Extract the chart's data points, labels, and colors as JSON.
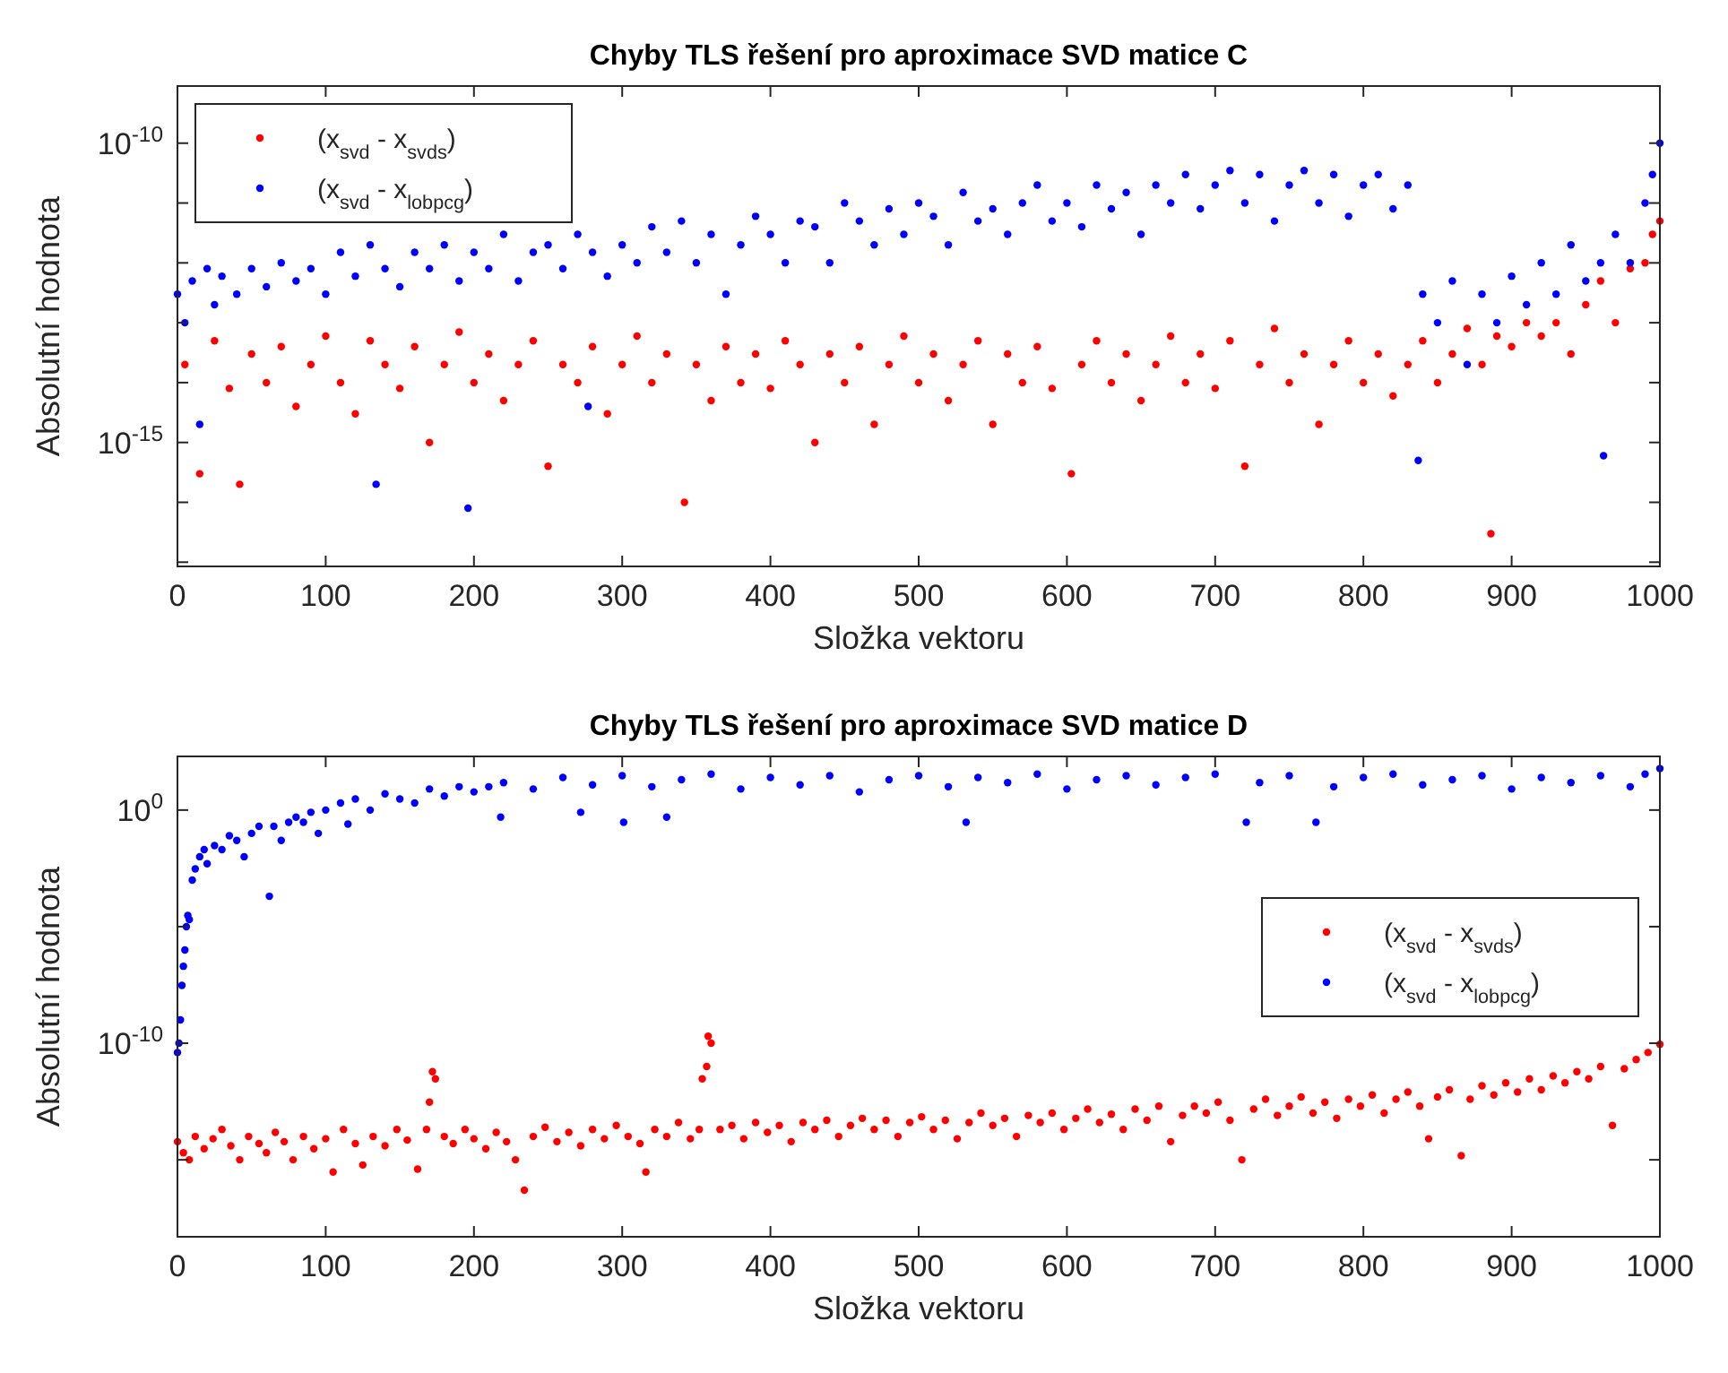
{
  "chart_data": [
    {
      "type": "scatter",
      "title": "Chyby TLS řešení pro aproximace SVD matice C",
      "xlabel": "Složka vektoru",
      "ylabel": "Absolutní hodnota",
      "log": "y",
      "grid": false,
      "legend": "top left",
      "marker": "circle",
      "xlim": [
        0,
        1000
      ],
      "xticks": [
        0,
        100,
        200,
        300,
        400,
        500,
        600,
        700,
        800,
        900,
        1000
      ],
      "ylim": [
        8.5e-18,
        9e-10
      ],
      "yticks": [
        {
          "value": 1e-17,
          "label": null
        },
        {
          "value": 1e-16,
          "label": null
        },
        {
          "value": 1e-15,
          "label": "10$^{-15}$"
        },
        {
          "value": 1e-14,
          "label": null
        },
        {
          "value": 1e-13,
          "label": null
        },
        {
          "value": 1e-12,
          "label": null
        },
        {
          "value": 1e-11,
          "label": null
        },
        {
          "value": 1e-10,
          "label": "10$^{-10}$"
        }
      ],
      "series": [
        {
          "name": "(x$_{svd}$ - x$_{svds}$)",
          "color": "#ff0000",
          "x": [
            5,
            15,
            25,
            35,
            42,
            50,
            60,
            70,
            80,
            90,
            100,
            110,
            120,
            130,
            140,
            150,
            160,
            170,
            180,
            190,
            200,
            210,
            220,
            230,
            240,
            250,
            260,
            270,
            280,
            290,
            300,
            310,
            320,
            330,
            342,
            350,
            360,
            370,
            380,
            390,
            400,
            410,
            420,
            430,
            440,
            450,
            460,
            470,
            480,
            490,
            500,
            510,
            520,
            530,
            540,
            550,
            560,
            570,
            580,
            590,
            603,
            610,
            620,
            630,
            640,
            650,
            660,
            670,
            680,
            690,
            700,
            710,
            720,
            730,
            740,
            750,
            760,
            770,
            780,
            790,
            800,
            810,
            820,
            830,
            840,
            850,
            860,
            870,
            880,
            886,
            890,
            900,
            910,
            920,
            930,
            940,
            950,
            960,
            970,
            980,
            990,
            995,
            1000
          ],
          "values": [
            2e-14,
            3e-16,
            5e-14,
            8e-15,
            2e-16,
            3e-14,
            1e-14,
            4e-14,
            4e-15,
            2e-14,
            6e-14,
            1e-14,
            3e-15,
            5e-14,
            2e-14,
            8e-15,
            4e-14,
            1e-15,
            2e-14,
            7e-14,
            1e-14,
            3e-14,
            5e-15,
            2e-14,
            5e-14,
            4e-16,
            2e-14,
            1e-14,
            4e-14,
            3e-15,
            2e-14,
            6e-14,
            1e-14,
            3e-14,
            1e-16,
            2e-14,
            5e-15,
            4e-14,
            1e-14,
            3e-14,
            8e-15,
            5e-14,
            2e-14,
            1e-15,
            3e-14,
            1e-14,
            4e-14,
            2e-15,
            2e-14,
            6e-14,
            1e-14,
            3e-14,
            5e-15,
            2e-14,
            5e-14,
            2e-15,
            3e-14,
            1e-14,
            4e-14,
            8e-15,
            3e-16,
            2e-14,
            5e-14,
            1e-14,
            3e-14,
            5e-15,
            2e-14,
            6e-14,
            1e-14,
            3e-14,
            8e-15,
            5e-14,
            4e-16,
            2e-14,
            8e-14,
            1e-14,
            3e-14,
            2e-15,
            2e-14,
            5e-14,
            1e-14,
            3e-14,
            6e-15,
            2e-14,
            5e-14,
            1e-14,
            3e-14,
            8e-14,
            2e-14,
            3e-17,
            6e-14,
            4e-14,
            1e-13,
            6e-14,
            1e-13,
            3e-14,
            2e-13,
            5e-13,
            1e-13,
            8e-13,
            1e-12,
            3e-12,
            5e-12
          ]
        },
        {
          "name": "(x$_{svd}$ - x$_{lobpcg}$)",
          "color": "#0000ff",
          "x": [
            0,
            5,
            10,
            15,
            20,
            25,
            30,
            40,
            50,
            60,
            70,
            80,
            90,
            100,
            110,
            120,
            130,
            134,
            140,
            150,
            160,
            170,
            180,
            190,
            196,
            200,
            210,
            220,
            230,
            240,
            250,
            260,
            270,
            277,
            280,
            290,
            300,
            310,
            320,
            330,
            340,
            350,
            360,
            370,
            380,
            390,
            400,
            410,
            420,
            430,
            440,
            450,
            460,
            470,
            480,
            490,
            500,
            510,
            520,
            530,
            540,
            550,
            560,
            570,
            580,
            590,
            600,
            610,
            620,
            630,
            640,
            650,
            660,
            670,
            680,
            690,
            700,
            710,
            720,
            730,
            740,
            750,
            760,
            770,
            780,
            790,
            800,
            810,
            820,
            830,
            837,
            840,
            850,
            860,
            870,
            880,
            890,
            900,
            910,
            920,
            930,
            940,
            950,
            960,
            962,
            970,
            980,
            990,
            995,
            1000
          ],
          "values": [
            3e-13,
            1e-13,
            5e-13,
            2e-15,
            8e-13,
            2e-13,
            6e-13,
            3e-13,
            8e-13,
            4e-13,
            1e-12,
            5e-13,
            8e-13,
            3e-13,
            1.5e-12,
            6e-13,
            2e-12,
            2e-16,
            8e-13,
            4e-13,
            1.5e-12,
            8e-13,
            2e-12,
            5e-13,
            8e-17,
            1.5e-12,
            8e-13,
            3e-12,
            5e-13,
            1.5e-12,
            2e-12,
            8e-13,
            3e-12,
            4e-15,
            1.5e-12,
            6e-13,
            2e-12,
            1e-12,
            4e-12,
            1.5e-12,
            5e-12,
            1e-12,
            3e-12,
            3e-13,
            2e-12,
            6e-12,
            3e-12,
            1e-12,
            5e-12,
            4e-12,
            1e-12,
            1e-11,
            5e-12,
            2e-12,
            8e-12,
            3e-12,
            1e-11,
            6e-12,
            2e-12,
            1.5e-11,
            5e-12,
            8e-12,
            3e-12,
            1e-11,
            2e-11,
            5e-12,
            1e-11,
            4e-12,
            2e-11,
            8e-12,
            1.5e-11,
            3e-12,
            2e-11,
            1e-11,
            3e-11,
            8e-12,
            2e-11,
            3.5e-11,
            1e-11,
            3e-11,
            5e-12,
            2e-11,
            3.5e-11,
            1e-11,
            3e-11,
            6e-12,
            2e-11,
            3e-11,
            8e-12,
            2e-11,
            5e-16,
            3e-13,
            1e-13,
            5e-13,
            2e-14,
            3e-13,
            1e-13,
            6e-13,
            2e-13,
            1e-12,
            3e-13,
            2e-12,
            5e-13,
            1e-12,
            6e-16,
            3e-12,
            1e-12,
            1e-11,
            3e-11,
            1e-10
          ]
        }
      ]
    },
    {
      "type": "scatter",
      "title": "Chyby TLS řešení pro aproximace SVD matice D",
      "xlabel": "Složka vektoru",
      "ylabel": "Absolutní hodnota",
      "log": "y",
      "grid": false,
      "legend": "right",
      "marker": "circle",
      "xlim": [
        0,
        1000
      ],
      "xticks": [
        0,
        100,
        200,
        300,
        400,
        500,
        600,
        700,
        800,
        900,
        1000
      ],
      "ylim": [
        5e-19,
        200
      ],
      "yticks": [
        {
          "value": 1e-15,
          "label": null
        },
        {
          "value": 1e-10,
          "label": "10$^{-10}$"
        },
        {
          "value": 1e-05,
          "label": null
        },
        {
          "value": 1,
          "label": "10$^{0}$"
        }
      ],
      "series": [
        {
          "name": "(x$_{svd}$ - x$_{svds}$)",
          "color": "#ff0000",
          "x": [
            0,
            4,
            8,
            12,
            18,
            24,
            30,
            36,
            42,
            48,
            55,
            60,
            66,
            72,
            78,
            85,
            92,
            100,
            105,
            112,
            120,
            125,
            132,
            140,
            148,
            155,
            162,
            168,
            170,
            172,
            174,
            180,
            186,
            194,
            200,
            208,
            215,
            222,
            228,
            234,
            240,
            248,
            256,
            264,
            272,
            280,
            288,
            296,
            304,
            312,
            316,
            322,
            330,
            338,
            346,
            352,
            354,
            357,
            358,
            360,
            366,
            374,
            382,
            390,
            398,
            406,
            414,
            422,
            430,
            438,
            446,
            454,
            462,
            470,
            478,
            486,
            494,
            502,
            510,
            518,
            526,
            534,
            542,
            550,
            558,
            566,
            574,
            582,
            590,
            598,
            606,
            614,
            622,
            630,
            638,
            646,
            654,
            662,
            670,
            678,
            686,
            694,
            702,
            710,
            718,
            726,
            734,
            742,
            750,
            758,
            766,
            774,
            782,
            790,
            798,
            806,
            814,
            822,
            830,
            838,
            844,
            850,
            858,
            866,
            872,
            880,
            888,
            896,
            904,
            912,
            920,
            928,
            936,
            944,
            952,
            960,
            968,
            976,
            984,
            992,
            1000
          ],
          "values": [
            6e-15,
            2e-15,
            1e-15,
            1e-14,
            3e-15,
            8e-15,
            2e-14,
            4e-15,
            1e-15,
            1e-14,
            5e-15,
            2e-15,
            1.5e-14,
            6e-15,
            1e-15,
            1e-14,
            3e-15,
            8e-15,
            3e-16,
            2e-14,
            5e-15,
            6e-16,
            1e-14,
            4e-15,
            2e-14,
            7e-15,
            4e-16,
            2e-14,
            3e-13,
            6e-12,
            3e-12,
            1e-14,
            5e-15,
            2e-14,
            8e-15,
            3e-15,
            1.5e-14,
            6e-15,
            1e-15,
            5e-17,
            1e-14,
            2.5e-14,
            6e-15,
            1.5e-14,
            4e-15,
            2e-14,
            8e-15,
            3e-14,
            1e-14,
            5e-15,
            3e-16,
            2e-14,
            1e-14,
            4e-14,
            8e-15,
            2e-14,
            3e-12,
            1e-11,
            2e-10,
            1e-10,
            2e-14,
            3e-14,
            8e-15,
            4e-14,
            1.5e-14,
            3e-14,
            6e-15,
            4e-14,
            2e-14,
            5e-14,
            1e-14,
            3e-14,
            6e-14,
            2e-14,
            5e-14,
            1e-14,
            4e-14,
            7e-14,
            2e-14,
            5e-14,
            8e-15,
            4e-14,
            1e-13,
            3e-14,
            6e-14,
            1e-14,
            8e-14,
            4e-14,
            1e-13,
            2e-14,
            6e-14,
            1.5e-13,
            4e-14,
            9e-14,
            2e-14,
            1.5e-13,
            5e-14,
            2e-13,
            6e-15,
            8e-14,
            2e-13,
            1e-13,
            3e-13,
            5e-14,
            1e-15,
            1.5e-13,
            4e-13,
            8e-14,
            2e-13,
            5e-13,
            1e-13,
            3e-13,
            6e-14,
            4e-13,
            2e-13,
            6e-13,
            1e-13,
            4e-13,
            8e-13,
            2e-13,
            8e-15,
            5e-13,
            1e-12,
            1.5e-15,
            4e-13,
            1.5e-12,
            6e-13,
            2e-12,
            8e-13,
            3e-12,
            1e-12,
            4e-12,
            2e-12,
            6e-12,
            3e-12,
            1e-11,
            3e-14,
            8e-12,
            2e-11,
            4e-11,
            9e-11
          ]
        },
        {
          "name": "(x$_{svd}$ - x$_{lobpcg}$)",
          "color": "#0000ff",
          "x": [
            0,
            1,
            2,
            3,
            4,
            5,
            6,
            7,
            8,
            10,
            12,
            15,
            18,
            20,
            25,
            30,
            35,
            40,
            45,
            50,
            55,
            62,
            65,
            70,
            75,
            80,
            85,
            90,
            95,
            100,
            110,
            115,
            120,
            130,
            140,
            150,
            160,
            170,
            180,
            190,
            200,
            210,
            218,
            220,
            240,
            260,
            272,
            280,
            300,
            301,
            320,
            330,
            340,
            360,
            380,
            400,
            420,
            440,
            460,
            480,
            500,
            520,
            532,
            540,
            560,
            580,
            600,
            620,
            640,
            660,
            680,
            700,
            721,
            730,
            750,
            768,
            780,
            800,
            820,
            840,
            860,
            880,
            900,
            920,
            940,
            960,
            980,
            990,
            1000
          ],
          "values": [
            4e-11,
            1e-10,
            1e-09,
            3e-08,
            2e-07,
            1e-06,
            1e-05,
            3e-05,
            2e-05,
            0.001,
            0.003,
            0.01,
            0.02,
            0.005,
            0.03,
            0.02,
            0.08,
            0.05,
            0.01,
            0.1,
            0.2,
            0.0002,
            0.2,
            0.05,
            0.3,
            0.5,
            0.3,
            0.8,
            0.1,
            1,
            2,
            0.25,
            3,
            1,
            5,
            3,
            2,
            8,
            4,
            10,
            6,
            10,
            0.5,
            15,
            8,
            25,
            0.8,
            12,
            30,
            0.3,
            10,
            0.5,
            20,
            35,
            8,
            25,
            12,
            30,
            6,
            20,
            30,
            10,
            0.3,
            25,
            15,
            35,
            8,
            20,
            30,
            12,
            25,
            35,
            0.3,
            15,
            30,
            0.3,
            10,
            25,
            35,
            12,
            20,
            30,
            8,
            25,
            15,
            30,
            10,
            35,
            60
          ]
        }
      ]
    }
  ]
}
